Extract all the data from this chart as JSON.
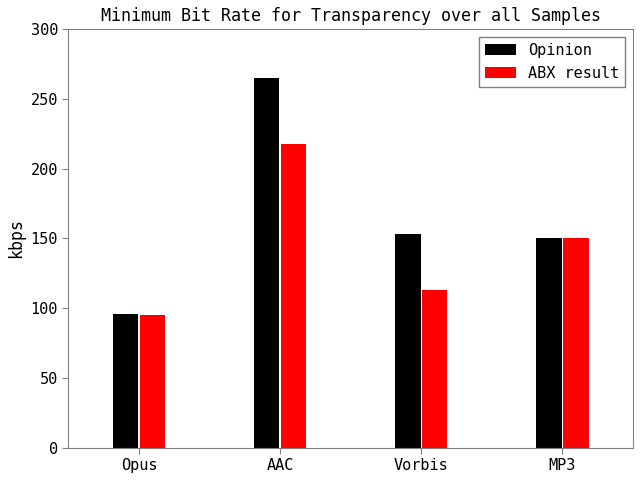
{
  "title": "Minimum Bit Rate for Transparency over all Samples",
  "ylabel": "kbps",
  "categories": [
    "Opus",
    "AAC",
    "Vorbis",
    "MP3"
  ],
  "opinion_values": [
    96,
    265,
    153,
    150
  ],
  "abx_values": [
    95,
    218,
    113,
    150
  ],
  "opinion_color": "#000000",
  "abx_color": "#ff0000",
  "legend_labels": [
    "Opinion",
    "ABX result"
  ],
  "ylim": [
    0,
    300
  ],
  "yticks": [
    0,
    50,
    100,
    150,
    200,
    250,
    300
  ],
  "bar_width": 0.18,
  "background_color": "#ffffff",
  "title_fontsize": 12,
  "axis_label_fontsize": 12,
  "tick_fontsize": 11,
  "legend_fontsize": 11
}
